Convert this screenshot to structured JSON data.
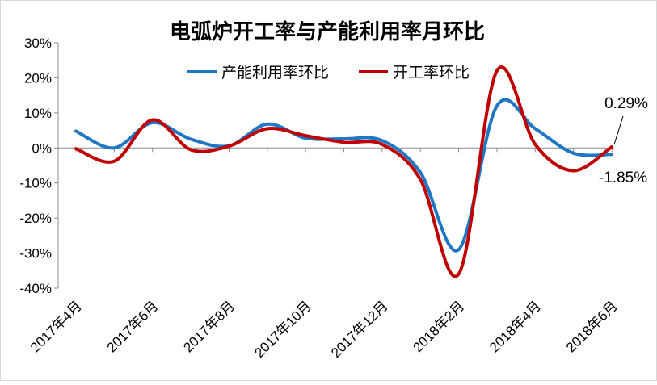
{
  "chart_data": {
    "type": "line",
    "title": "电弧炉开工率与产能利用率月环比",
    "xlabel": "",
    "ylabel": "",
    "categories": [
      "2017年4月",
      "2017年5月",
      "2017年6月",
      "2017年7月",
      "2017年8月",
      "2017年9月",
      "2017年10月",
      "2017年11月",
      "2017年12月",
      "2018年1月",
      "2018年2月",
      "2018年3月",
      "2018年4月",
      "2018年5月",
      "2018年6月"
    ],
    "x_tick_labels": [
      "2017年4月",
      "2017年6月",
      "2017年8月",
      "2017年10月",
      "2017年12月",
      "2018年2月",
      "2018年4月",
      "2018年6月"
    ],
    "y_tick_labels": [
      "30%",
      "20%",
      "10%",
      "0%",
      "-10%",
      "-20%",
      "-30%",
      "-40%"
    ],
    "ylim": [
      -40,
      30
    ],
    "y_unit": "%",
    "grid": false,
    "legend_position": "top",
    "series": [
      {
        "name": "产能利用率环比",
        "color": "#1f77c4",
        "values": [
          4.8,
          0.0,
          7.2,
          2.5,
          0.6,
          6.8,
          2.8,
          2.6,
          2.1,
          -7.0,
          -29.0,
          12.0,
          5.5,
          -1.5,
          -1.85
        ]
      },
      {
        "name": "开工率环比",
        "color": "#c00000",
        "values": [
          -0.2,
          -3.8,
          8.0,
          -0.5,
          0.5,
          5.5,
          3.5,
          1.6,
          1.0,
          -9.0,
          -36.0,
          22.0,
          1.0,
          -6.5,
          0.29
        ]
      }
    ],
    "annotations": [
      {
        "text": "0.29%",
        "series": "开工率环比",
        "index": 14
      },
      {
        "text": "-1.85%",
        "series": "产能利用率环比",
        "index": 14
      }
    ]
  }
}
